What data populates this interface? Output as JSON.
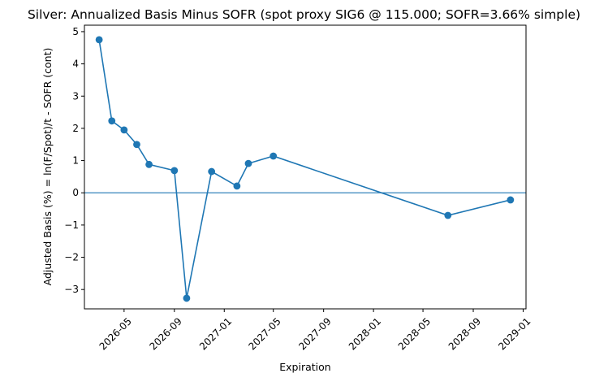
{
  "chart_data": {
    "type": "line",
    "title": "Silver: Annualized Basis Minus SOFR (spot proxy SIG6 @ 115.000; SOFR=3.66% simple)",
    "xlabel": "Expiration",
    "ylabel": "Adjusted Basis (%) = ln(F/Spot)/t - SOFR (cont)",
    "xlim": [
      "2026-01-24",
      "2029-01-08"
    ],
    "ylim": [
      -3.6,
      5.2
    ],
    "x_ticks": [
      "2026-05",
      "2026-09",
      "2027-01",
      "2027-05",
      "2027-09",
      "2028-01",
      "2028-05",
      "2028-09",
      "2029-01"
    ],
    "y_ticks": [
      5,
      4,
      3,
      2,
      1,
      0,
      -1,
      -2,
      -3
    ],
    "y_tick_labels": [
      "5",
      "4",
      "3",
      "2",
      "1",
      "0",
      "−1",
      "−2",
      "−3"
    ],
    "series": [
      {
        "name": "Adjusted Basis",
        "color": "#1f77b4",
        "points": [
          {
            "x": "2026-03-01",
            "y": 4.75
          },
          {
            "x": "2026-04-01",
            "y": 2.23
          },
          {
            "x": "2026-05-01",
            "y": 1.95
          },
          {
            "x": "2026-06-01",
            "y": 1.5
          },
          {
            "x": "2026-07-01",
            "y": 0.88
          },
          {
            "x": "2026-09-01",
            "y": 0.69
          },
          {
            "x": "2026-10-01",
            "y": -3.27
          },
          {
            "x": "2026-12-01",
            "y": 0.66
          },
          {
            "x": "2027-02-01",
            "y": 0.21
          },
          {
            "x": "2027-03-01",
            "y": 0.91
          },
          {
            "x": "2027-05-01",
            "y": 1.14
          },
          {
            "x": "2028-07-01",
            "y": -0.7
          },
          {
            "x": "2028-12-01",
            "y": -0.22
          }
        ]
      }
    ],
    "hline": {
      "y": 0,
      "color": "#1f77b4"
    }
  }
}
